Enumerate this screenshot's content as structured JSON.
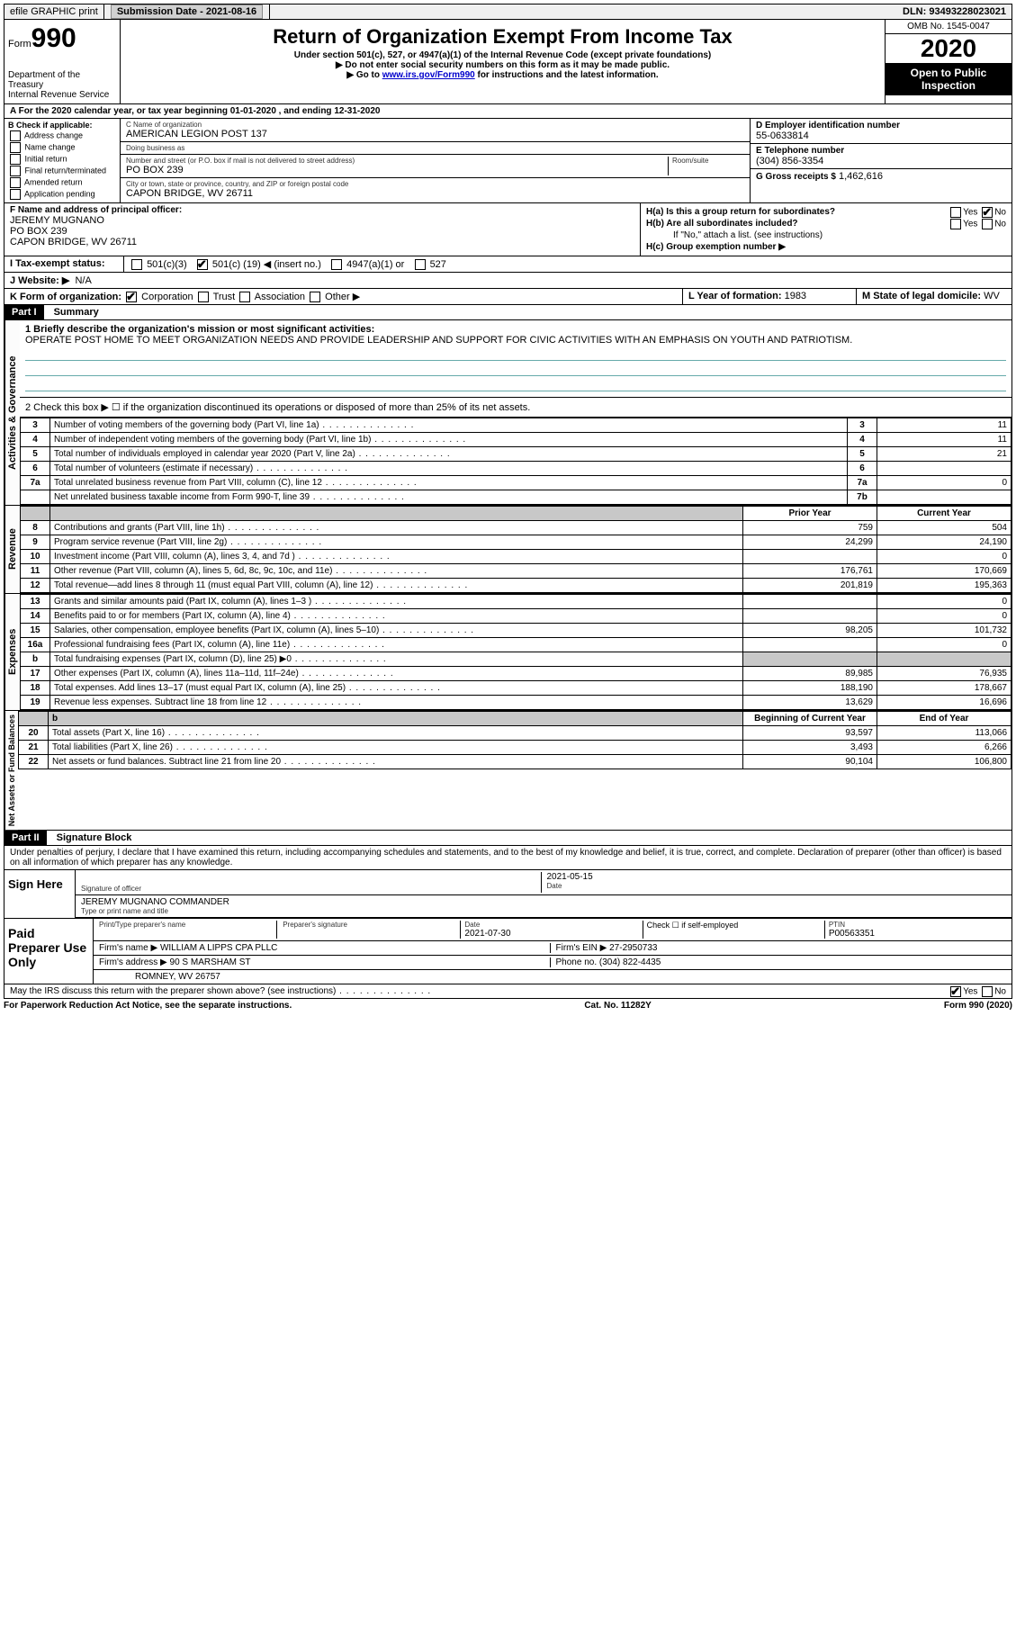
{
  "top_bar": {
    "efile": "efile GRAPHIC print",
    "submission_label": "Submission Date - 2021-08-16",
    "dln": "DLN: 93493228023021"
  },
  "header": {
    "form_label": "Form",
    "form_number": "990",
    "dept": "Department of the Treasury",
    "irs": "Internal Revenue Service",
    "title": "Return of Organization Exempt From Income Tax",
    "subtitle1": "Under section 501(c), 527, or 4947(a)(1) of the Internal Revenue Code (except private foundations)",
    "subtitle2": "▶ Do not enter social security numbers on this form as it may be made public.",
    "subtitle3_pre": "▶ Go to ",
    "subtitle3_link": "www.irs.gov/Form990",
    "subtitle3_post": " for instructions and the latest information.",
    "omb": "OMB No. 1545-0047",
    "year": "2020",
    "inspect": "Open to Public Inspection"
  },
  "period": "A For the 2020 calendar year, or tax year beginning 01-01-2020    , and ending 12-31-2020",
  "section_b": {
    "label": "B Check if applicable:",
    "items": [
      "Address change",
      "Name change",
      "Initial return",
      "Final return/terminated",
      "Amended return",
      "Application pending"
    ]
  },
  "section_c": {
    "name_label": "C Name of organization",
    "name": "AMERICAN LEGION POST 137",
    "dba_label": "Doing business as",
    "addr_label": "Number and street (or P.O. box if mail is not delivered to street address)",
    "room_label": "Room/suite",
    "addr": "PO BOX 239",
    "city_label": "City or town, state or province, country, and ZIP or foreign postal code",
    "city": "CAPON BRIDGE, WV  26711"
  },
  "section_d": {
    "label": "D Employer identification number",
    "value": "55-0633814"
  },
  "section_e": {
    "label": "E Telephone number",
    "value": "(304) 856-3354"
  },
  "section_g": {
    "label": "G Gross receipts $",
    "value": "1,462,616"
  },
  "section_f": {
    "label": "F  Name and address of principal officer:",
    "name": "JEREMY MUGNANO",
    "addr1": "PO BOX 239",
    "addr2": "CAPON BRIDGE, WV  26711"
  },
  "section_h": {
    "ha": "H(a)  Is this a group return for subordinates?",
    "hb": "H(b)  Are all subordinates included?",
    "hb_note": "If \"No,\" attach a list. (see instructions)",
    "hc": "H(c)  Group exemption number ▶"
  },
  "tax_exempt": {
    "row_label": "I   Tax-exempt status:",
    "c3": "501(c)(3)",
    "c_other_pre": "501(c) (",
    "c_other_num": "19",
    "c_other_post": ") ◀ (insert no.)",
    "a1": "4947(a)(1) or",
    "s527": "527"
  },
  "website": {
    "label": "J   Website: ▶",
    "value": "N/A"
  },
  "section_k": {
    "label": "K Form of organization:",
    "corp": "Corporation",
    "trust": "Trust",
    "assoc": "Association",
    "other": "Other ▶"
  },
  "section_l": {
    "label": "L Year of formation:",
    "value": "1983"
  },
  "section_m": {
    "label": "M State of legal domicile:",
    "value": "WV"
  },
  "part1": {
    "header": "Part I",
    "title": "Summary",
    "line1_label": "1  Briefly describe the organization's mission or most significant activities:",
    "mission": "OPERATE POST HOME TO MEET ORGANIZATION NEEDS AND PROVIDE LEADERSHIP AND SUPPORT FOR CIVIC ACTIVITIES WITH AN EMPHASIS ON YOUTH AND PATRIOTISM.",
    "line2": "2   Check this box ▶ ☐  if the organization discontinued its operations or disposed of more than 25% of its net assets.",
    "governance_rows": [
      {
        "n": "3",
        "label": "Number of voting members of the governing body (Part VI, line 1a)",
        "box": "3",
        "val": "11"
      },
      {
        "n": "4",
        "label": "Number of independent voting members of the governing body (Part VI, line 1b)",
        "box": "4",
        "val": "11"
      },
      {
        "n": "5",
        "label": "Total number of individuals employed in calendar year 2020 (Part V, line 2a)",
        "box": "5",
        "val": "21"
      },
      {
        "n": "6",
        "label": "Total number of volunteers (estimate if necessary)",
        "box": "6",
        "val": ""
      },
      {
        "n": "7a",
        "label": "Total unrelated business revenue from Part VIII, column (C), line 12",
        "box": "7a",
        "val": "0"
      },
      {
        "n": "",
        "label": "Net unrelated business taxable income from Form 990-T, line 39",
        "box": "7b",
        "val": ""
      }
    ],
    "col_headers": {
      "prior": "Prior Year",
      "current": "Current Year"
    },
    "revenue_rows": [
      {
        "n": "8",
        "label": "Contributions and grants (Part VIII, line 1h)",
        "prior": "759",
        "curr": "504"
      },
      {
        "n": "9",
        "label": "Program service revenue (Part VIII, line 2g)",
        "prior": "24,299",
        "curr": "24,190"
      },
      {
        "n": "10",
        "label": "Investment income (Part VIII, column (A), lines 3, 4, and 7d )",
        "prior": "",
        "curr": "0"
      },
      {
        "n": "11",
        "label": "Other revenue (Part VIII, column (A), lines 5, 6d, 8c, 9c, 10c, and 11e)",
        "prior": "176,761",
        "curr": "170,669"
      },
      {
        "n": "12",
        "label": "Total revenue—add lines 8 through 11 (must equal Part VIII, column (A), line 12)",
        "prior": "201,819",
        "curr": "195,363"
      }
    ],
    "expense_rows": [
      {
        "n": "13",
        "label": "Grants and similar amounts paid (Part IX, column (A), lines 1–3 )",
        "prior": "",
        "curr": "0"
      },
      {
        "n": "14",
        "label": "Benefits paid to or for members (Part IX, column (A), line 4)",
        "prior": "",
        "curr": "0"
      },
      {
        "n": "15",
        "label": "Salaries, other compensation, employee benefits (Part IX, column (A), lines 5–10)",
        "prior": "98,205",
        "curr": "101,732"
      },
      {
        "n": "16a",
        "label": "Professional fundraising fees (Part IX, column (A), line 11e)",
        "prior": "",
        "curr": "0"
      },
      {
        "n": "b",
        "label": "Total fundraising expenses (Part IX, column (D), line 25) ▶0",
        "prior": "SHADE",
        "curr": "SHADE"
      },
      {
        "n": "17",
        "label": "Other expenses (Part IX, column (A), lines 11a–11d, 11f–24e)",
        "prior": "89,985",
        "curr": "76,935"
      },
      {
        "n": "18",
        "label": "Total expenses. Add lines 13–17 (must equal Part IX, column (A), line 25)",
        "prior": "188,190",
        "curr": "178,667"
      },
      {
        "n": "19",
        "label": "Revenue less expenses. Subtract line 18 from line 12",
        "prior": "13,629",
        "curr": "16,696"
      }
    ],
    "net_headers": {
      "begin": "Beginning of Current Year",
      "end": "End of Year"
    },
    "net_rows": [
      {
        "n": "20",
        "label": "Total assets (Part X, line 16)",
        "prior": "93,597",
        "curr": "113,066"
      },
      {
        "n": "21",
        "label": "Total liabilities (Part X, line 26)",
        "prior": "3,493",
        "curr": "6,266"
      },
      {
        "n": "22",
        "label": "Net assets or fund balances. Subtract line 21 from line 20",
        "prior": "90,104",
        "curr": "106,800"
      }
    ],
    "vert_labels": {
      "gov": "Activities & Governance",
      "rev": "Revenue",
      "exp": "Expenses",
      "net": "Net Assets or Fund Balances"
    }
  },
  "part2": {
    "header": "Part II",
    "title": "Signature Block",
    "penalty": "Under penalties of perjury, I declare that I have examined this return, including accompanying schedules and statements, and to the best of my knowledge and belief, it is true, correct, and complete. Declaration of preparer (other than officer) is based on all information of which preparer has any knowledge.",
    "sign_here": "Sign Here",
    "sig_officer_label": "Signature of officer",
    "sig_date": "2021-05-15",
    "sig_date_label": "Date",
    "officer_name": "JEREMY MUGNANO  COMMANDER",
    "officer_name_label": "Type or print name and title",
    "paid": "Paid Preparer Use Only",
    "prep_name_label": "Print/Type preparer's name",
    "prep_sig_label": "Preparer's signature",
    "prep_date_label": "Date",
    "prep_date": "2021-07-30",
    "self_emp": "Check ☐ if self-employed",
    "ptin_label": "PTIN",
    "ptin": "P00563351",
    "firm_name_label": "Firm's name    ▶",
    "firm_name": "WILLIAM A LIPPS CPA PLLC",
    "firm_ein_label": "Firm's EIN ▶",
    "firm_ein": "27-2950733",
    "firm_addr_label": "Firm's address ▶",
    "firm_addr1": "90 S MARSHAM ST",
    "firm_addr2": "ROMNEY, WV  26757",
    "phone_label": "Phone no.",
    "phone": "(304) 822-4435",
    "discuss": "May the IRS discuss this return with the preparer shown above? (see instructions)"
  },
  "footer": {
    "pra": "For Paperwork Reduction Act Notice, see the separate instructions.",
    "cat": "Cat. No. 11282Y",
    "form": "Form 990 (2020)"
  }
}
